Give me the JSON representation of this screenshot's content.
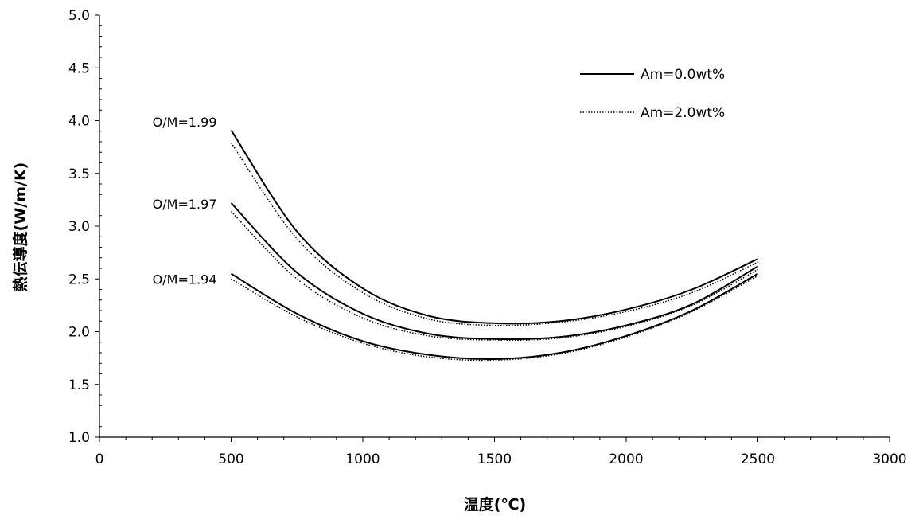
{
  "chart_data": {
    "type": "line",
    "title": "",
    "xlabel": "温度(℃)",
    "ylabel": "熱伝導度(W/m/K)",
    "xlim": [
      0,
      3000
    ],
    "ylim": [
      1.0,
      5.0
    ],
    "x_ticks": [
      0,
      500,
      1000,
      1500,
      2000,
      2500,
      3000
    ],
    "y_ticks": [
      1.0,
      1.5,
      2.0,
      2.5,
      3.0,
      3.5,
      4.0,
      4.5,
      5.0
    ],
    "x_tick_labels": [
      "0",
      "500",
      "1000",
      "1500",
      "2000",
      "2500",
      "3000"
    ],
    "y_tick_labels": [
      "1.0",
      "1.5",
      "2.0",
      "2.5",
      "3.0",
      "3.5",
      "4.0",
      "4.5",
      "5.0"
    ],
    "grid": false,
    "legend_position": "top-right",
    "legend": [
      {
        "label": "Am=0.0wt%",
        "style": "solid"
      },
      {
        "label": "Am=2.0wt%",
        "style": "dotted"
      }
    ],
    "annotations": [
      {
        "text": "O/M=1.99",
        "x": 500,
        "y": 3.99
      },
      {
        "text": "O/M=1.97",
        "x": 500,
        "y": 3.21
      },
      {
        "text": "O/M=1.94",
        "x": 500,
        "y": 2.5
      }
    ],
    "x": [
      500,
      750,
      1000,
      1250,
      1500,
      1750,
      2000,
      2250,
      2500
    ],
    "series": [
      {
        "group": "O/M=1.99",
        "style": "solid",
        "values": [
          3.91,
          2.95,
          2.41,
          2.15,
          2.08,
          2.1,
          2.21,
          2.4,
          2.69
        ]
      },
      {
        "group": "O/M=1.99",
        "style": "dotted",
        "values": [
          3.79,
          2.88,
          2.37,
          2.12,
          2.06,
          2.09,
          2.19,
          2.37,
          2.66
        ]
      },
      {
        "group": "O/M=1.97",
        "style": "solid",
        "values": [
          3.22,
          2.56,
          2.17,
          1.98,
          1.93,
          1.95,
          2.06,
          2.26,
          2.62
        ]
      },
      {
        "group": "O/M=1.97",
        "style": "dotted",
        "values": [
          3.14,
          2.5,
          2.13,
          1.96,
          1.92,
          1.94,
          2.05,
          2.25,
          2.59
        ]
      },
      {
        "group": "O/M=1.94",
        "style": "solid",
        "values": [
          2.55,
          2.17,
          1.91,
          1.78,
          1.74,
          1.8,
          1.96,
          2.2,
          2.55
        ]
      },
      {
        "group": "O/M=1.94",
        "style": "dotted",
        "values": [
          2.5,
          2.14,
          1.89,
          1.76,
          1.73,
          1.79,
          1.95,
          2.19,
          2.53
        ]
      }
    ],
    "colors": {
      "line": "#000000",
      "background": "#ffffff"
    }
  }
}
